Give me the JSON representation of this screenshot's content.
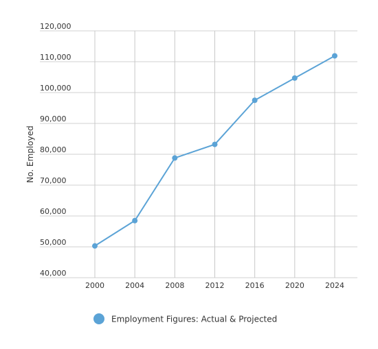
{
  "chart_data": {
    "type": "line",
    "title": "",
    "xlabel": "",
    "ylabel": "No. Employed",
    "x": [
      2000,
      2004,
      2008,
      2012,
      2016,
      2020,
      2024
    ],
    "xticks": [
      "2000",
      "2004",
      "2008",
      "2012",
      "2016",
      "2020",
      "2024"
    ],
    "yticks": [
      "40,000",
      "50,000",
      "60,000",
      "70,000",
      "80,000",
      "90,000",
      "100,000",
      "110,000",
      "120,000"
    ],
    "ylim": [
      40000,
      120000
    ],
    "series": [
      {
        "name": "Employment Figures: Actual & Projected",
        "color": "#5ba3d6",
        "values": [
          50300,
          58500,
          78800,
          83200,
          97500,
          104700,
          111900
        ]
      }
    ],
    "grid": true,
    "legend_position": "bottom-center"
  }
}
